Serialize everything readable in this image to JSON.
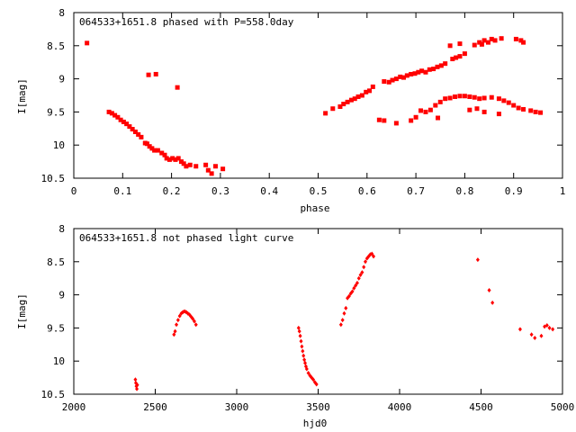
{
  "chart_data": [
    {
      "type": "scatter",
      "title": "064533+1651.8 phased with P=558.0day",
      "xlabel": "phase",
      "ylabel": "I[mag]",
      "xlim": [
        0,
        1
      ],
      "ylim": [
        10.5,
        8
      ],
      "y_inverted": true,
      "grid": false,
      "marker_color": "#ff0000",
      "x_ticks": [
        "0",
        "0.1",
        "0.2",
        "0.3",
        "0.4",
        "0.5",
        "0.6",
        "0.7",
        "0.8",
        "0.9",
        "1"
      ],
      "y_ticks": [
        "8",
        "8.5",
        "9",
        "9.5",
        "10",
        "10.5"
      ],
      "series": [
        {
          "points": [
            [
              0.027,
              8.46
            ],
            [
              0.072,
              9.5
            ],
            [
              0.078,
              9.52
            ],
            [
              0.084,
              9.55
            ],
            [
              0.09,
              9.58
            ],
            [
              0.096,
              9.62
            ],
            [
              0.102,
              9.65
            ],
            [
              0.108,
              9.68
            ],
            [
              0.114,
              9.72
            ],
            [
              0.12,
              9.76
            ],
            [
              0.126,
              9.8
            ],
            [
              0.132,
              9.84
            ],
            [
              0.138,
              9.88
            ],
            [
              0.146,
              9.97
            ],
            [
              0.15,
              9.98
            ],
            [
              0.155,
              10.02
            ],
            [
              0.16,
              10.05
            ],
            [
              0.165,
              10.08
            ],
            [
              0.172,
              10.08
            ],
            [
              0.18,
              10.12
            ],
            [
              0.186,
              10.15
            ],
            [
              0.19,
              10.2
            ],
            [
              0.196,
              10.22
            ],
            [
              0.202,
              10.2
            ],
            [
              0.208,
              10.22
            ],
            [
              0.214,
              10.2
            ],
            [
              0.22,
              10.25
            ],
            [
              0.225,
              10.28
            ],
            [
              0.23,
              10.32
            ],
            [
              0.238,
              10.3
            ],
            [
              0.25,
              10.32
            ],
            [
              0.27,
              10.3
            ],
            [
              0.275,
              10.38
            ],
            [
              0.282,
              10.43
            ],
            [
              0.29,
              10.32
            ],
            [
              0.305,
              10.36
            ],
            [
              0.153,
              8.94
            ],
            [
              0.168,
              8.93
            ],
            [
              0.212,
              9.13
            ],
            [
              0.515,
              9.52
            ],
            [
              0.53,
              9.45
            ],
            [
              0.545,
              9.42
            ],
            [
              0.552,
              9.38
            ],
            [
              0.56,
              9.35
            ],
            [
              0.568,
              9.32
            ],
            [
              0.575,
              9.3
            ],
            [
              0.582,
              9.27
            ],
            [
              0.59,
              9.25
            ],
            [
              0.598,
              9.2
            ],
            [
              0.605,
              9.18
            ],
            [
              0.612,
              9.12
            ],
            [
              0.635,
              9.04
            ],
            [
              0.645,
              9.05
            ],
            [
              0.652,
              9.02
            ],
            [
              0.66,
              9.0
            ],
            [
              0.668,
              8.97
            ],
            [
              0.675,
              8.98
            ],
            [
              0.682,
              8.95
            ],
            [
              0.69,
              8.93
            ],
            [
              0.698,
              8.92
            ],
            [
              0.705,
              8.9
            ],
            [
              0.712,
              8.88
            ],
            [
              0.72,
              8.9
            ],
            [
              0.728,
              8.86
            ],
            [
              0.736,
              8.85
            ],
            [
              0.744,
              8.82
            ],
            [
              0.752,
              8.8
            ],
            [
              0.76,
              8.77
            ],
            [
              0.775,
              8.7
            ],
            [
              0.782,
              8.68
            ],
            [
              0.79,
              8.66
            ],
            [
              0.8,
              8.62
            ],
            [
              0.77,
              8.5
            ],
            [
              0.79,
              8.47
            ],
            [
              0.82,
              8.49
            ],
            [
              0.83,
              8.45
            ],
            [
              0.835,
              8.48
            ],
            [
              0.84,
              8.42
            ],
            [
              0.848,
              8.45
            ],
            [
              0.855,
              8.4
            ],
            [
              0.862,
              8.42
            ],
            [
              0.875,
              8.39
            ],
            [
              0.905,
              8.4
            ],
            [
              0.915,
              8.42
            ],
            [
              0.92,
              8.45
            ],
            [
              0.625,
              9.62
            ],
            [
              0.635,
              9.63
            ],
            [
              0.66,
              9.67
            ],
            [
              0.69,
              9.63
            ],
            [
              0.7,
              9.58
            ],
            [
              0.71,
              9.48
            ],
            [
              0.72,
              9.5
            ],
            [
              0.73,
              9.47
            ],
            [
              0.74,
              9.4
            ],
            [
              0.75,
              9.35
            ],
            [
              0.76,
              9.3
            ],
            [
              0.77,
              9.29
            ],
            [
              0.78,
              9.27
            ],
            [
              0.79,
              9.26
            ],
            [
              0.8,
              9.26
            ],
            [
              0.81,
              9.27
            ],
            [
              0.82,
              9.28
            ],
            [
              0.83,
              9.3
            ],
            [
              0.84,
              9.29
            ],
            [
              0.855,
              9.28
            ],
            [
              0.87,
              9.3
            ],
            [
              0.88,
              9.33
            ],
            [
              0.89,
              9.36
            ],
            [
              0.9,
              9.4
            ],
            [
              0.91,
              9.44
            ],
            [
              0.92,
              9.46
            ],
            [
              0.935,
              9.48
            ],
            [
              0.945,
              9.5
            ],
            [
              0.955,
              9.51
            ],
            [
              0.745,
              9.59
            ],
            [
              0.81,
              9.47
            ],
            [
              0.825,
              9.45
            ],
            [
              0.84,
              9.5
            ],
            [
              0.87,
              9.53
            ]
          ]
        }
      ]
    },
    {
      "type": "scatter",
      "title": "064533+1651.8 not phased light curve",
      "xlabel": "hjd0",
      "ylabel": "I[mag]",
      "xlim": [
        2000,
        5000
      ],
      "ylim": [
        10.5,
        8
      ],
      "y_inverted": true,
      "grid": false,
      "marker_color": "#ff0000",
      "x_ticks": [
        "2000",
        "2500",
        "3000",
        "3500",
        "4000",
        "4500",
        "5000"
      ],
      "y_ticks": [
        "8",
        "8.5",
        "9",
        "9.5",
        "10",
        "10.5"
      ],
      "series": [
        {
          "points": [
            [
              2378,
              10.28
            ],
            [
              2381,
              10.33
            ],
            [
              2384,
              10.38
            ],
            [
              2387,
              10.42
            ],
            [
              2390,
              10.36
            ],
            [
              2615,
              9.6
            ],
            [
              2622,
              9.55
            ],
            [
              2630,
              9.45
            ],
            [
              2640,
              9.38
            ],
            [
              2650,
              9.32
            ],
            [
              2660,
              9.28
            ],
            [
              2670,
              9.26
            ],
            [
              2680,
              9.25
            ],
            [
              2690,
              9.26
            ],
            [
              2700,
              9.28
            ],
            [
              2710,
              9.3
            ],
            [
              2720,
              9.33
            ],
            [
              2730,
              9.36
            ],
            [
              2740,
              9.4
            ],
            [
              2750,
              9.45
            ],
            [
              3380,
              9.5
            ],
            [
              3385,
              9.55
            ],
            [
              3390,
              9.62
            ],
            [
              3395,
              9.7
            ],
            [
              3400,
              9.78
            ],
            [
              3405,
              9.85
            ],
            [
              3410,
              9.92
            ],
            [
              3415,
              9.98
            ],
            [
              3420,
              10.03
            ],
            [
              3425,
              10.08
            ],
            [
              3430,
              10.12
            ],
            [
              3440,
              10.18
            ],
            [
              3450,
              10.22
            ],
            [
              3460,
              10.25
            ],
            [
              3470,
              10.28
            ],
            [
              3480,
              10.32
            ],
            [
              3490,
              10.35
            ],
            [
              3640,
              9.45
            ],
            [
              3650,
              9.38
            ],
            [
              3660,
              9.28
            ],
            [
              3670,
              9.2
            ],
            [
              3680,
              9.05
            ],
            [
              3690,
              9.02
            ],
            [
              3700,
              8.98
            ],
            [
              3710,
              8.95
            ],
            [
              3720,
              8.9
            ],
            [
              3730,
              8.86
            ],
            [
              3740,
              8.82
            ],
            [
              3750,
              8.75
            ],
            [
              3760,
              8.7
            ],
            [
              3770,
              8.66
            ],
            [
              3780,
              8.58
            ],
            [
              3790,
              8.5
            ],
            [
              3800,
              8.45
            ],
            [
              3810,
              8.42
            ],
            [
              3820,
              8.39
            ],
            [
              3830,
              8.38
            ],
            [
              3840,
              8.42
            ],
            [
              4480,
              8.47
            ],
            [
              4550,
              8.93
            ],
            [
              4570,
              9.12
            ],
            [
              4740,
              9.52
            ],
            [
              4810,
              9.6
            ],
            [
              4830,
              9.65
            ],
            [
              4870,
              9.62
            ],
            [
              4890,
              9.48
            ],
            [
              4905,
              9.46
            ],
            [
              4920,
              9.5
            ],
            [
              4940,
              9.52
            ]
          ]
        }
      ]
    }
  ]
}
